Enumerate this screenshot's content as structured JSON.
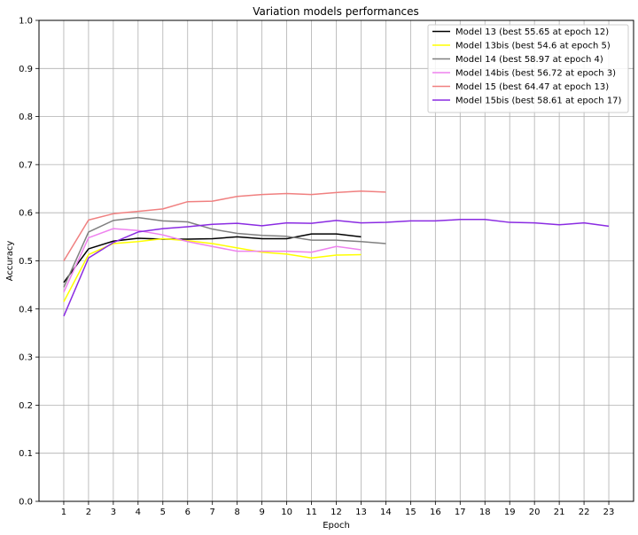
{
  "chart_data": {
    "type": "line",
    "title": "Variation models performances",
    "xlabel": "Epoch",
    "ylabel": "Accuracy",
    "xlim": [
      0,
      24
    ],
    "ylim": [
      0,
      1.0
    ],
    "x_ticks": [
      1,
      2,
      3,
      4,
      5,
      6,
      7,
      8,
      9,
      10,
      11,
      12,
      13,
      14,
      15,
      16,
      17,
      18,
      19,
      20,
      21,
      22,
      23
    ],
    "y_ticks": [
      "0.0",
      "0.1",
      "0.2",
      "0.3",
      "0.4",
      "0.5",
      "0.6",
      "0.7",
      "0.8",
      "0.9",
      "1.0"
    ],
    "grid": true,
    "legend_position": "top-right",
    "series": [
      {
        "name": "Model 13 (best 55.65 at epoch 12)",
        "color": "#000000",
        "x": [
          1,
          2,
          3,
          4,
          5,
          6,
          7,
          8,
          9,
          10,
          11,
          12,
          13
        ],
        "y": [
          0.455,
          0.525,
          0.541,
          0.547,
          0.545,
          0.545,
          0.546,
          0.55,
          0.546,
          0.546,
          0.556,
          0.556,
          0.55
        ]
      },
      {
        "name": "Model 13bis (best 54.6 at epoch 5)",
        "color": "#ffff00",
        "x": [
          1,
          2,
          3,
          4,
          5,
          6,
          7,
          8,
          9,
          10,
          11,
          12,
          13
        ],
        "y": [
          0.415,
          0.513,
          0.536,
          0.54,
          0.546,
          0.542,
          0.536,
          0.527,
          0.518,
          0.514,
          0.506,
          0.512,
          0.513
        ]
      },
      {
        "name": "Model 14 (best 58.97 at epoch 4)",
        "color": "#808080",
        "x": [
          1,
          2,
          3,
          4,
          5,
          6,
          7,
          8,
          9,
          10,
          11,
          12,
          13,
          14
        ],
        "y": [
          0.445,
          0.56,
          0.584,
          0.59,
          0.583,
          0.581,
          0.566,
          0.557,
          0.553,
          0.551,
          0.543,
          0.543,
          0.54,
          0.536
        ]
      },
      {
        "name": "Model 14bis (best 56.72 at epoch 3)",
        "color": "#ee82ee",
        "x": [
          1,
          2,
          3,
          4,
          5,
          6,
          7,
          8,
          9,
          10,
          11,
          12,
          13
        ],
        "y": [
          0.435,
          0.548,
          0.567,
          0.563,
          0.554,
          0.54,
          0.53,
          0.52,
          0.52,
          0.52,
          0.518,
          0.53,
          0.523
        ]
      },
      {
        "name": "Model 15 (best 64.47 at epoch 13)",
        "color": "#f08080",
        "x": [
          1,
          2,
          3,
          4,
          5,
          6,
          7,
          8,
          9,
          10,
          11,
          12,
          13,
          14
        ],
        "y": [
          0.5,
          0.585,
          0.598,
          0.603,
          0.608,
          0.623,
          0.624,
          0.634,
          0.638,
          0.64,
          0.638,
          0.642,
          0.645,
          0.643
        ]
      },
      {
        "name": "Model 15bis (best 58.61 at epoch 17)",
        "color": "#8a2be2",
        "x": [
          1,
          2,
          3,
          4,
          5,
          6,
          7,
          8,
          9,
          10,
          11,
          12,
          13,
          14,
          15,
          16,
          17,
          18,
          19,
          20,
          21,
          22,
          23
        ],
        "y": [
          0.385,
          0.506,
          0.538,
          0.56,
          0.567,
          0.571,
          0.576,
          0.578,
          0.573,
          0.579,
          0.578,
          0.584,
          0.579,
          0.58,
          0.583,
          0.583,
          0.586,
          0.586,
          0.58,
          0.579,
          0.575,
          0.579,
          0.572
        ]
      }
    ]
  }
}
